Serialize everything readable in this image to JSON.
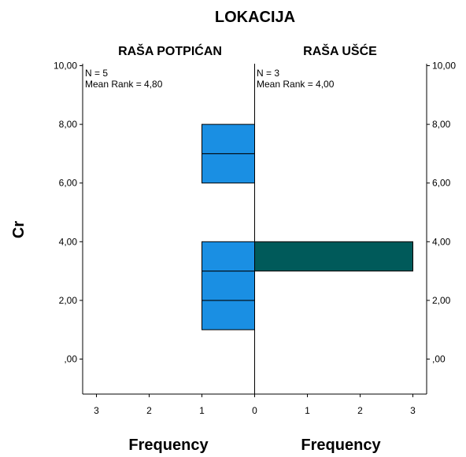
{
  "chart_data": {
    "type": "bar",
    "subtype": "population-pyramid-histogram",
    "title": "LOKACIJA",
    "ylabel": "Cr",
    "xlabel": "Frequency",
    "y_ticks": [
      ",00",
      "2,00",
      "4,00",
      "6,00",
      "8,00",
      "10,00"
    ],
    "y_tick_values": [
      0,
      2,
      4,
      6,
      8,
      10
    ],
    "ylim": [
      -1.1,
      10
    ],
    "x_ticks": [
      "3",
      "2",
      "1",
      "0",
      "1",
      "2",
      "3"
    ],
    "xlim": [
      0,
      3
    ],
    "bin_width": 1,
    "series": [
      {
        "name": "RAŠA POTPIĆAN",
        "side": "left",
        "color": "#1a8fe3",
        "n_label": "N = 5",
        "mean_rank_label": "Mean Rank = 4,80",
        "bins": [
          {
            "y_from": 1,
            "y_to": 2,
            "count": 1
          },
          {
            "y_from": 2,
            "y_to": 3,
            "count": 1
          },
          {
            "y_from": 3,
            "y_to": 4,
            "count": 1
          },
          {
            "y_from": 6,
            "y_to": 7,
            "count": 1
          },
          {
            "y_from": 7,
            "y_to": 8,
            "count": 1
          }
        ]
      },
      {
        "name": "RAŠA UŠĆE",
        "side": "right",
        "color": "#005a5a",
        "n_label": "N = 3",
        "mean_rank_label": "Mean Rank = 4,00",
        "bins": [
          {
            "y_from": 3,
            "y_to": 4,
            "count": 3
          }
        ]
      }
    ]
  }
}
